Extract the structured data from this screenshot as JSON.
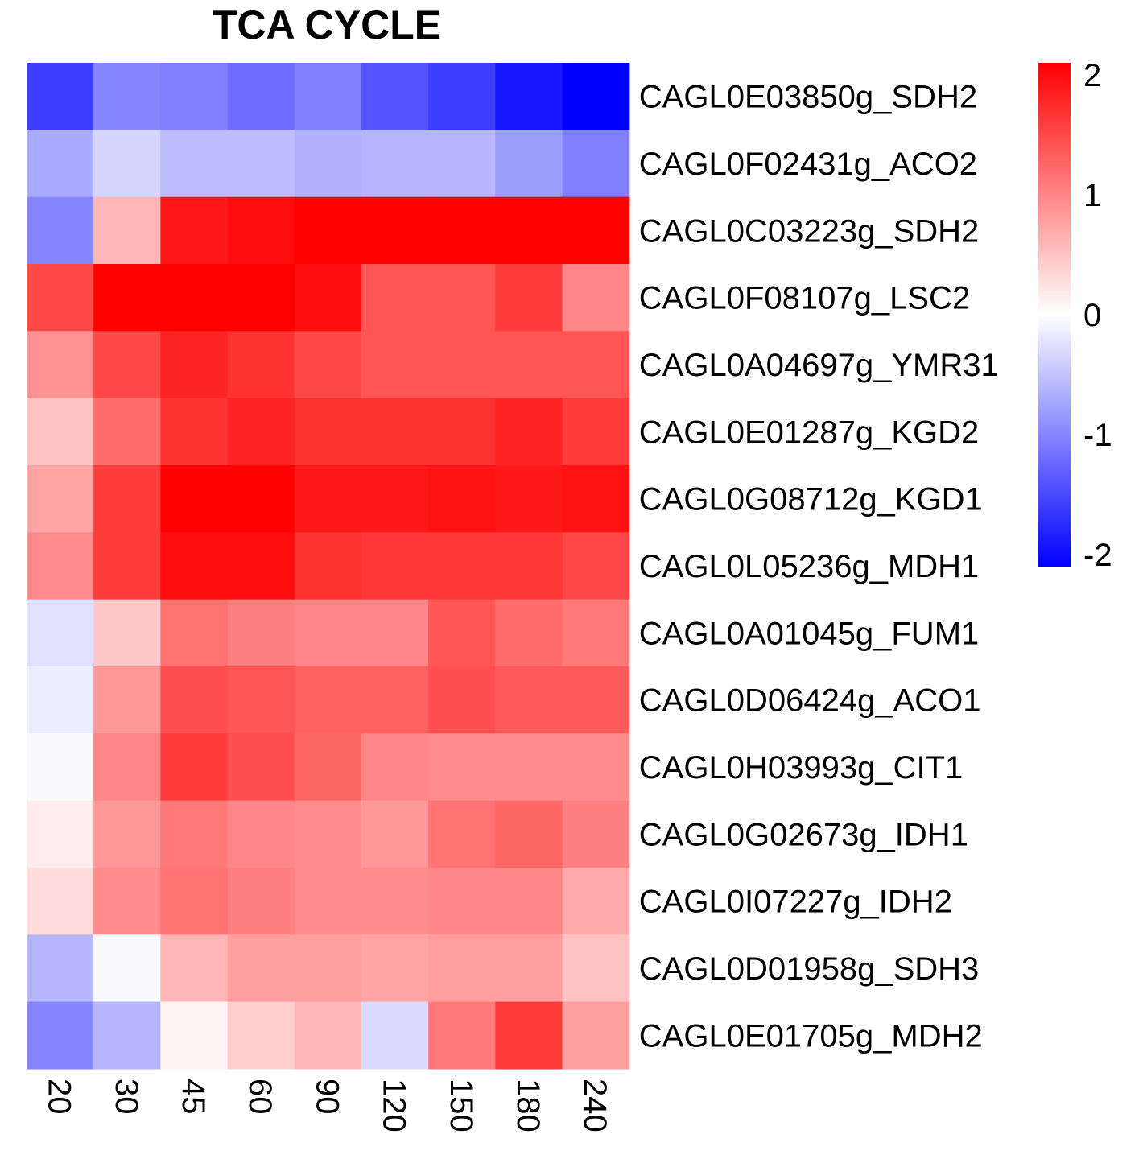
{
  "chart_data": {
    "type": "heatmap",
    "title": "TCA CYCLE",
    "columns": [
      "20",
      "30",
      "45",
      "60",
      "90",
      "120",
      "150",
      "180",
      "240"
    ],
    "rows": [
      "CAGL0E03850g_SDH2",
      "CAGL0F02431g_ACO2",
      "CAGL0C03223g_SDH2",
      "CAGL0F08107g_LSC2",
      "CAGL0A04697g_YMR31",
      "CAGL0E01287g_KGD2",
      "CAGL0G08712g_KGD1",
      "CAGL0L05236g_MDH1",
      "CAGL0A01045g_FUM1",
      "CAGL0D06424g_ACO1",
      "CAGL0H03993g_CIT1",
      "CAGL0G02673g_IDH1",
      "CAGL0I07227g_IDH2",
      "CAGL0D01958g_SDH3",
      "CAGL0E01705g_MDH2"
    ],
    "values": [
      [
        -1.6,
        -1.0,
        -1.05,
        -1.2,
        -1.05,
        -1.4,
        -1.6,
        -1.9,
        -2.1
      ],
      [
        -0.7,
        -0.35,
        -0.55,
        -0.55,
        -0.65,
        -0.6,
        -0.6,
        -0.8,
        -1.05
      ],
      [
        -1.0,
        0.6,
        1.9,
        2.0,
        2.1,
        2.1,
        2.1,
        2.1,
        2.1
      ],
      [
        1.5,
        2.1,
        2.1,
        2.1,
        2.0,
        1.4,
        1.4,
        1.6,
        1.0
      ],
      [
        0.9,
        1.5,
        1.8,
        1.7,
        1.5,
        1.4,
        1.4,
        1.4,
        1.4
      ],
      [
        0.5,
        1.2,
        1.7,
        1.8,
        1.7,
        1.7,
        1.7,
        1.8,
        1.6
      ],
      [
        0.75,
        1.6,
        2.1,
        2.1,
        1.9,
        1.9,
        1.95,
        1.9,
        1.95
      ],
      [
        0.95,
        1.6,
        2.0,
        2.0,
        1.7,
        1.65,
        1.65,
        1.65,
        1.5
      ],
      [
        -0.25,
        0.45,
        1.15,
        1.05,
        1.0,
        1.0,
        1.4,
        1.2,
        1.1
      ],
      [
        -0.15,
        0.85,
        1.45,
        1.4,
        1.3,
        1.3,
        1.45,
        1.35,
        1.35
      ],
      [
        -0.05,
        1.0,
        1.6,
        1.45,
        1.25,
        1.0,
        0.95,
        0.95,
        0.95
      ],
      [
        0.15,
        0.85,
        1.1,
        1.0,
        0.95,
        0.85,
        1.15,
        1.25,
        1.05
      ],
      [
        0.3,
        0.95,
        1.15,
        1.05,
        0.95,
        0.95,
        1.0,
        1.0,
        0.7
      ],
      [
        -0.6,
        -0.05,
        0.6,
        0.8,
        0.8,
        0.75,
        0.8,
        0.8,
        0.5
      ],
      [
        -1.0,
        -0.6,
        0.1,
        0.4,
        0.6,
        -0.3,
        1.1,
        1.6,
        0.8
      ]
    ],
    "color_scale": {
      "min": -2.1,
      "max": 2.1,
      "low_color": "#0000ff",
      "mid_color": "#ffffff",
      "high_color": "#ff0000"
    },
    "legend": {
      "placement": "right",
      "ticks": [
        "2",
        "1",
        "0",
        "-1",
        "-2"
      ],
      "tick_values": [
        2,
        1,
        0,
        -1,
        -2
      ]
    },
    "grid": false
  }
}
